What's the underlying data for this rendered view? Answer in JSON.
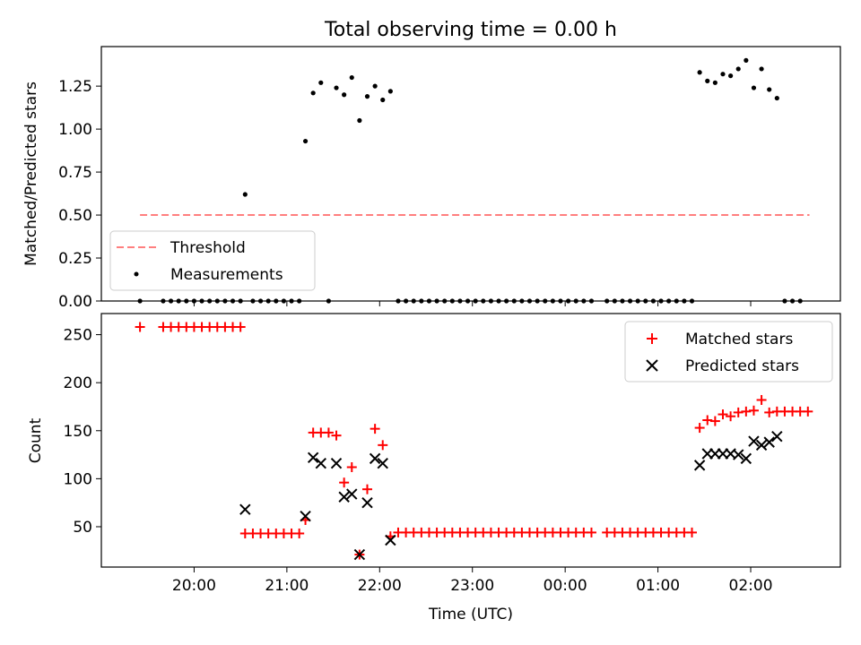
{
  "chart_data": [
    {
      "type": "scatter",
      "title": "Total observing time = 0.00 h",
      "ylabel": "Matched/Predicted stars",
      "xlabel": "",
      "ylim": [
        0,
        1.48
      ],
      "yticks": [
        0.0,
        0.25,
        0.5,
        0.75,
        1.0,
        1.25
      ],
      "ytick_labels": [
        "0.00",
        "0.25",
        "0.50",
        "0.75",
        "1.00",
        "1.25"
      ],
      "legend": {
        "position": "lower-left",
        "entries": [
          "Threshold",
          "Measurements"
        ]
      },
      "threshold": {
        "name": "Threshold",
        "value": 0.5,
        "x_start": "19:25",
        "x_end": "02:38",
        "color": "#ff7f7f",
        "style": "dashed"
      },
      "series": [
        {
          "name": "Measurements",
          "marker": "dot",
          "color": "#000000",
          "points": [
            [
              "19:25",
              0.0
            ],
            [
              "19:40",
              0.0
            ],
            [
              "19:45",
              0.0
            ],
            [
              "19:50",
              0.0
            ],
            [
              "19:55",
              0.0
            ],
            [
              "20:00",
              0.0
            ],
            [
              "20:05",
              0.0
            ],
            [
              "20:10",
              0.0
            ],
            [
              "20:15",
              0.0
            ],
            [
              "20:20",
              0.0
            ],
            [
              "20:25",
              0.0
            ],
            [
              "20:30",
              0.0
            ],
            [
              "20:33",
              0.62
            ],
            [
              "20:38",
              0.0
            ],
            [
              "20:43",
              0.0
            ],
            [
              "20:48",
              0.0
            ],
            [
              "20:53",
              0.0
            ],
            [
              "20:58",
              0.0
            ],
            [
              "21:03",
              0.0
            ],
            [
              "21:08",
              0.0
            ],
            [
              "21:12",
              0.93
            ],
            [
              "21:17",
              1.21
            ],
            [
              "21:22",
              1.27
            ],
            [
              "21:27",
              0.0
            ],
            [
              "21:32",
              1.24
            ],
            [
              "21:37",
              1.2
            ],
            [
              "21:42",
              1.3
            ],
            [
              "21:47",
              1.05
            ],
            [
              "21:52",
              1.19
            ],
            [
              "21:57",
              1.25
            ],
            [
              "22:02",
              1.17
            ],
            [
              "22:07",
              1.22
            ],
            [
              "22:12",
              0.0
            ],
            [
              "22:17",
              0.0
            ],
            [
              "22:22",
              0.0
            ],
            [
              "22:27",
              0.0
            ],
            [
              "22:32",
              0.0
            ],
            [
              "22:37",
              0.0
            ],
            [
              "22:42",
              0.0
            ],
            [
              "22:47",
              0.0
            ],
            [
              "22:52",
              0.0
            ],
            [
              "22:57",
              0.0
            ],
            [
              "23:02",
              0.0
            ],
            [
              "23:07",
              0.0
            ],
            [
              "23:12",
              0.0
            ],
            [
              "23:17",
              0.0
            ],
            [
              "23:22",
              0.0
            ],
            [
              "23:27",
              0.0
            ],
            [
              "23:32",
              0.0
            ],
            [
              "23:37",
              0.0
            ],
            [
              "23:42",
              0.0
            ],
            [
              "23:47",
              0.0
            ],
            [
              "23:52",
              0.0
            ],
            [
              "23:57",
              0.0
            ],
            [
              "00:02",
              0.0
            ],
            [
              "00:07",
              0.0
            ],
            [
              "00:12",
              0.0
            ],
            [
              "00:17",
              0.0
            ],
            [
              "00:27",
              0.0
            ],
            [
              "00:32",
              0.0
            ],
            [
              "00:37",
              0.0
            ],
            [
              "00:42",
              0.0
            ],
            [
              "00:47",
              0.0
            ],
            [
              "00:52",
              0.0
            ],
            [
              "00:57",
              0.0
            ],
            [
              "01:02",
              0.0
            ],
            [
              "01:07",
              0.0
            ],
            [
              "01:12",
              0.0
            ],
            [
              "01:17",
              0.0
            ],
            [
              "01:22",
              0.0
            ],
            [
              "01:27",
              1.33
            ],
            [
              "01:32",
              1.28
            ],
            [
              "01:37",
              1.27
            ],
            [
              "01:42",
              1.32
            ],
            [
              "01:47",
              1.31
            ],
            [
              "01:52",
              1.35
            ],
            [
              "01:57",
              1.4
            ],
            [
              "02:02",
              1.24
            ],
            [
              "02:07",
              1.35
            ],
            [
              "02:12",
              1.23
            ],
            [
              "02:17",
              1.18
            ],
            [
              "02:22",
              0.0
            ],
            [
              "02:27",
              0.0
            ],
            [
              "02:32",
              0.0
            ]
          ]
        }
      ]
    },
    {
      "type": "scatter",
      "title": "",
      "xlabel": "Time (UTC)",
      "ylabel": "Count",
      "ylim": [
        8,
        272
      ],
      "yticks": [
        50,
        100,
        150,
        200,
        250
      ],
      "ytick_labels": [
        "50",
        "100",
        "150",
        "200",
        "250"
      ],
      "x_range": [
        "19:00",
        "02:58"
      ],
      "xticks": [
        "20:00",
        "21:00",
        "22:00",
        "23:00",
        "00:00",
        "01:00",
        "02:00"
      ],
      "xtick_labels": [
        "20:00",
        "21:00",
        "22:00",
        "23:00",
        "00:00",
        "01:00",
        "02:00"
      ],
      "legend": {
        "position": "top-right",
        "entries": [
          "Matched stars",
          "Predicted stars"
        ]
      },
      "series": [
        {
          "name": "Matched stars",
          "marker": "plus",
          "color": "#ff0000",
          "points": [
            [
              "19:25",
              258
            ],
            [
              "19:40",
              258
            ],
            [
              "19:45",
              258
            ],
            [
              "19:50",
              258
            ],
            [
              "19:55",
              258
            ],
            [
              "20:00",
              258
            ],
            [
              "20:05",
              258
            ],
            [
              "20:10",
              258
            ],
            [
              "20:15",
              258
            ],
            [
              "20:20",
              258
            ],
            [
              "20:25",
              258
            ],
            [
              "20:30",
              258
            ],
            [
              "20:33",
              43
            ],
            [
              "20:38",
              43
            ],
            [
              "20:43",
              43
            ],
            [
              "20:48",
              43
            ],
            [
              "20:53",
              43
            ],
            [
              "20:58",
              43
            ],
            [
              "21:03",
              43
            ],
            [
              "21:08",
              43
            ],
            [
              "21:12",
              57
            ],
            [
              "21:17",
              148
            ],
            [
              "21:22",
              148
            ],
            [
              "21:27",
              148
            ],
            [
              "21:32",
              145
            ],
            [
              "21:37",
              96
            ],
            [
              "21:42",
              112
            ],
            [
              "21:47",
              21
            ],
            [
              "21:52",
              89
            ],
            [
              "21:57",
              152
            ],
            [
              "22:02",
              135
            ],
            [
              "22:07",
              40
            ],
            [
              "22:12",
              44
            ],
            [
              "22:17",
              44
            ],
            [
              "22:22",
              44
            ],
            [
              "22:27",
              44
            ],
            [
              "22:32",
              44
            ],
            [
              "22:37",
              44
            ],
            [
              "22:42",
              44
            ],
            [
              "22:47",
              44
            ],
            [
              "22:52",
              44
            ],
            [
              "22:57",
              44
            ],
            [
              "23:02",
              44
            ],
            [
              "23:07",
              44
            ],
            [
              "23:12",
              44
            ],
            [
              "23:17",
              44
            ],
            [
              "23:22",
              44
            ],
            [
              "23:27",
              44
            ],
            [
              "23:32",
              44
            ],
            [
              "23:37",
              44
            ],
            [
              "23:42",
              44
            ],
            [
              "23:47",
              44
            ],
            [
              "23:52",
              44
            ],
            [
              "23:57",
              44
            ],
            [
              "00:02",
              44
            ],
            [
              "00:07",
              44
            ],
            [
              "00:12",
              44
            ],
            [
              "00:17",
              44
            ],
            [
              "00:27",
              44
            ],
            [
              "00:32",
              44
            ],
            [
              "00:37",
              44
            ],
            [
              "00:42",
              44
            ],
            [
              "00:47",
              44
            ],
            [
              "00:52",
              44
            ],
            [
              "00:57",
              44
            ],
            [
              "01:02",
              44
            ],
            [
              "01:07",
              44
            ],
            [
              "01:12",
              44
            ],
            [
              "01:17",
              44
            ],
            [
              "01:22",
              44
            ],
            [
              "01:27",
              153
            ],
            [
              "01:32",
              161
            ],
            [
              "01:37",
              160
            ],
            [
              "01:42",
              167
            ],
            [
              "01:47",
              165
            ],
            [
              "01:52",
              169
            ],
            [
              "01:57",
              170
            ],
            [
              "02:02",
              171
            ],
            [
              "02:07",
              182
            ],
            [
              "02:12",
              169
            ],
            [
              "02:17",
              170
            ],
            [
              "02:22",
              170
            ],
            [
              "02:27",
              170
            ],
            [
              "02:32",
              170
            ],
            [
              "02:37",
              170
            ]
          ]
        },
        {
          "name": "Predicted stars",
          "marker": "x",
          "color": "#000000",
          "points": [
            [
              "20:33",
              68
            ],
            [
              "21:12",
              61
            ],
            [
              "21:17",
              122
            ],
            [
              "21:22",
              116
            ],
            [
              "21:32",
              116
            ],
            [
              "21:37",
              81
            ],
            [
              "21:42",
              84
            ],
            [
              "21:47",
              21
            ],
            [
              "21:52",
              75
            ],
            [
              "21:57",
              121
            ],
            [
              "22:02",
              116
            ],
            [
              "22:07",
              36
            ],
            [
              "01:27",
              114
            ],
            [
              "01:32",
              126
            ],
            [
              "01:37",
              126
            ],
            [
              "01:42",
              126
            ],
            [
              "01:47",
              126
            ],
            [
              "01:52",
              125
            ],
            [
              "01:57",
              121
            ],
            [
              "02:02",
              139
            ],
            [
              "02:07",
              135
            ],
            [
              "02:12",
              138
            ],
            [
              "02:17",
              144
            ]
          ]
        }
      ]
    }
  ]
}
